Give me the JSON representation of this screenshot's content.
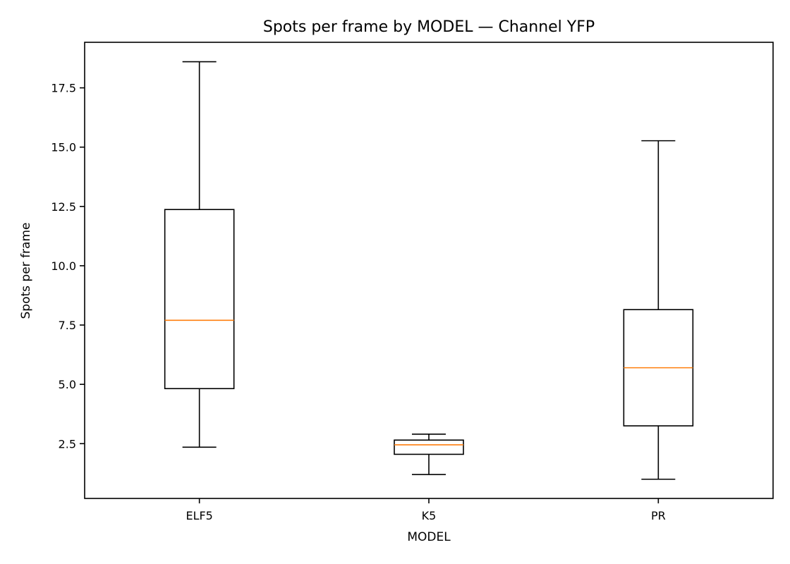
{
  "chart_data": {
    "type": "boxplot",
    "title": "Spots per frame by MODEL — Channel YFP",
    "xlabel": "MODEL",
    "ylabel": "Spots per frame",
    "categories": [
      "ELF5",
      "K5",
      "PR"
    ],
    "boxes": [
      {
        "category": "ELF5",
        "whisker_low": 2.35,
        "q1": 4.82,
        "median": 7.7,
        "q3": 12.37,
        "whisker_high": 18.6
      },
      {
        "category": "K5",
        "whisker_low": 1.2,
        "q1": 2.05,
        "median": 2.45,
        "q3": 2.65,
        "whisker_high": 2.9
      },
      {
        "category": "PR",
        "whisker_low": 1.0,
        "q1": 3.25,
        "median": 5.7,
        "q3": 8.15,
        "whisker_high": 15.27
      }
    ],
    "yticks": [
      2.5,
      5.0,
      7.5,
      10.0,
      12.5,
      15.0,
      17.5
    ],
    "ytick_labels": [
      "2.5",
      "5.0",
      "7.5",
      "10.0",
      "12.5",
      "15.0",
      "17.5"
    ],
    "ylim": [
      0.19,
      19.42
    ],
    "grid": false,
    "colors": {
      "box": "#000000",
      "median": "#ff7f0e",
      "axes": "#000000"
    }
  }
}
